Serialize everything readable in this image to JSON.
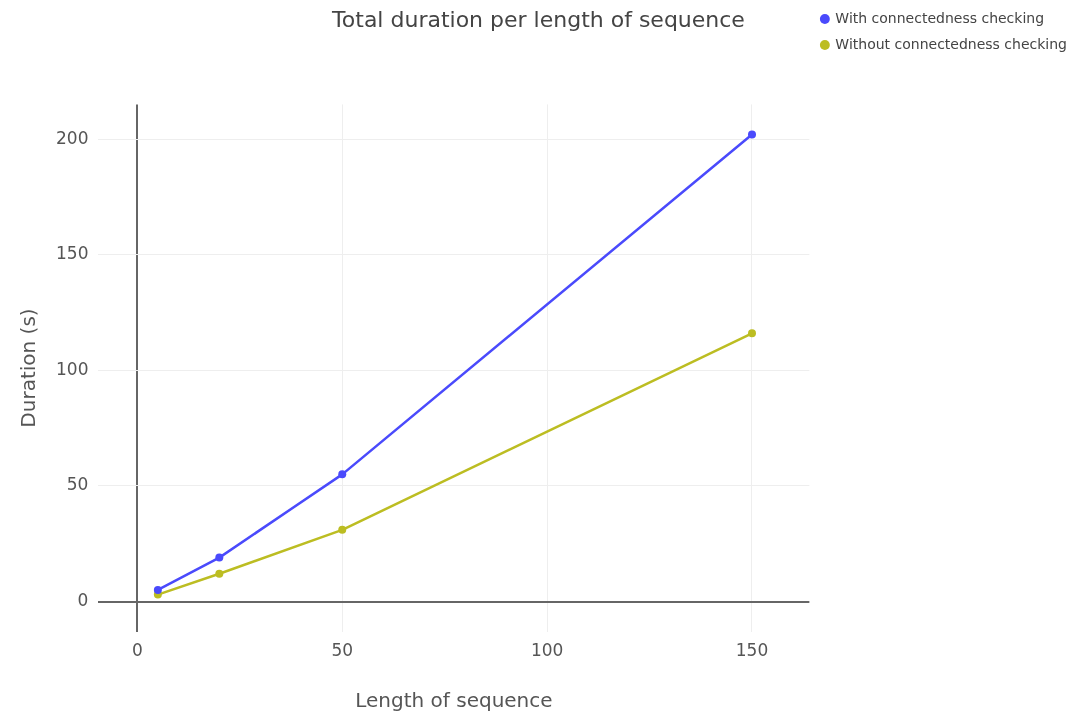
{
  "chart_data": {
    "type": "line",
    "title": "Total duration per length of sequence",
    "xlabel": "Length of sequence",
    "ylabel": "Duration (s)",
    "x": [
      5,
      20,
      50,
      150
    ],
    "series": [
      {
        "name": "With connectedness checking",
        "color": "#4a4afc",
        "values": [
          5,
          19,
          55,
          202
        ]
      },
      {
        "name": "Without connectedness checking",
        "color": "#bcbd22",
        "values": [
          3,
          12,
          31,
          116
        ]
      }
    ],
    "xlim": [
      -9.5,
      164
    ],
    "xticks": [
      0,
      50,
      100,
      150
    ],
    "ylim": [
      -13,
      215
    ],
    "yticks": [
      0,
      50,
      100,
      150,
      200
    ],
    "grid": true,
    "legend": "top right",
    "marker": "circle",
    "line_style": "solid"
  }
}
